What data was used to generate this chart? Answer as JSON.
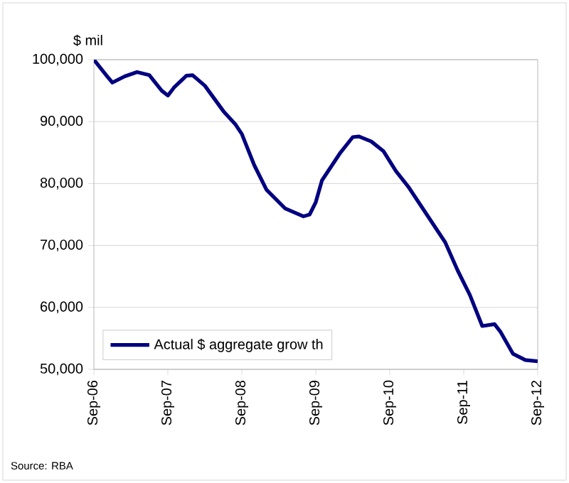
{
  "chart_data": {
    "type": "line",
    "ylabel": "$ mil",
    "annotations": [
      "Source: RBA"
    ],
    "x": [
      "2006-09",
      "2006-11",
      "2006-12",
      "2007-02",
      "2007-04",
      "2007-06",
      "2007-08",
      "2007-09",
      "2007-10",
      "2007-12",
      "2008-01",
      "2008-03",
      "2008-06",
      "2008-08",
      "2008-09",
      "2008-11",
      "2009-01",
      "2009-04",
      "2009-07",
      "2009-08",
      "2009-09",
      "2009-10",
      "2010-01",
      "2010-03",
      "2010-04",
      "2010-06",
      "2010-08",
      "2010-10",
      "2010-12",
      "2011-03",
      "2011-06",
      "2011-08",
      "2011-10",
      "2011-12",
      "2012-02",
      "2012-03",
      "2012-05",
      "2012-07",
      "2012-09"
    ],
    "series": [
      {
        "name": "Actual $ aggregate grow th",
        "color": "#000080",
        "values": [
          100000,
          97500,
          96300,
          97300,
          98000,
          97500,
          95000,
          94200,
          95500,
          97400,
          97500,
          95800,
          91700,
          89500,
          88000,
          83000,
          79000,
          76000,
          74700,
          75000,
          77000,
          80500,
          85000,
          87500,
          87600,
          86800,
          85200,
          82000,
          79500,
          75000,
          70500,
          66000,
          62000,
          57000,
          57300,
          56000,
          52500,
          51500,
          51300
        ]
      }
    ],
    "xlim": [
      "2006-09",
      "2012-09"
    ],
    "xticks": [
      {
        "value": "2006-09",
        "label": "Sep-06"
      },
      {
        "value": "2007-09",
        "label": "Sep-07"
      },
      {
        "value": "2008-09",
        "label": "Sep-08"
      },
      {
        "value": "2009-09",
        "label": "Sep-09"
      },
      {
        "value": "2010-09",
        "label": "Sep-10"
      },
      {
        "value": "2011-09",
        "label": "Sep-11"
      },
      {
        "value": "2012-09",
        "label": "Sep-12"
      }
    ],
    "ylim": [
      50000,
      100000
    ],
    "yticks": [
      {
        "value": 50000,
        "label": "50,000"
      },
      {
        "value": 60000,
        "label": "60,000"
      },
      {
        "value": 70000,
        "label": "70,000"
      },
      {
        "value": 80000,
        "label": "80,000"
      },
      {
        "value": 90000,
        "label": "90,000"
      },
      {
        "value": 100000,
        "label": "100,000"
      }
    ],
    "grid": "y",
    "legend": "bottom left",
    "marker": "none",
    "line_style": "solid"
  }
}
